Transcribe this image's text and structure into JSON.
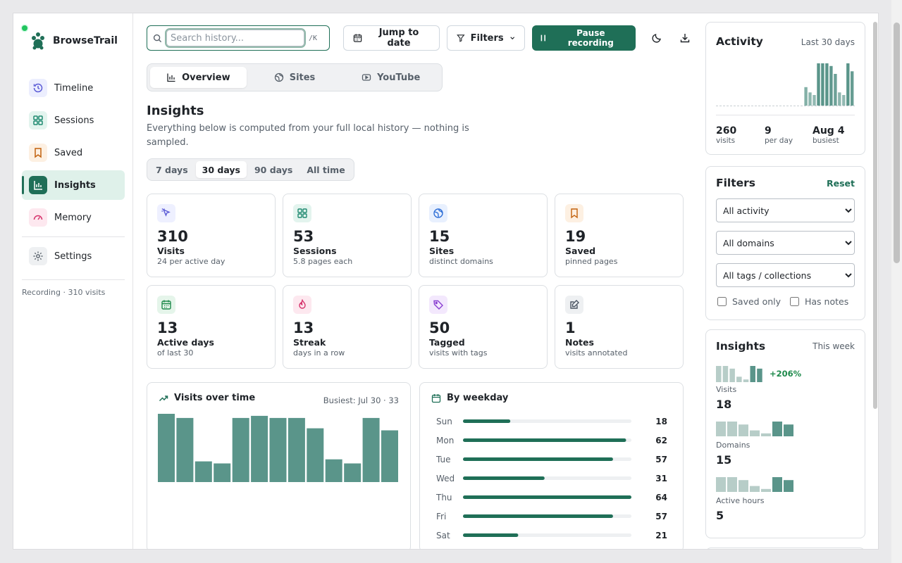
{
  "brand": {
    "name": "BrowseTrail"
  },
  "sidebar": {
    "items": [
      {
        "label": "Timeline",
        "icon": "history-icon"
      },
      {
        "label": "Sessions",
        "icon": "grid-icon"
      },
      {
        "label": "Saved",
        "icon": "bookmark-icon"
      },
      {
        "label": "Insights",
        "icon": "bar-chart-icon",
        "active": true
      },
      {
        "label": "Memory",
        "icon": "gauge-icon"
      },
      {
        "label": "Settings",
        "icon": "gear-icon"
      }
    ],
    "status": "Recording · 310 visits"
  },
  "topbar": {
    "search_placeholder": "Search history...",
    "search_shortcut": "/K",
    "jump_label": "Jump to date",
    "filters_label": "Filters",
    "pause_label": "Pause recording"
  },
  "tabs": [
    {
      "label": "Overview",
      "icon": "bar-chart-icon",
      "active": true
    },
    {
      "label": "Sites",
      "icon": "globe-icon"
    },
    {
      "label": "YouTube",
      "icon": "play-icon"
    }
  ],
  "insights": {
    "title": "Insights",
    "subtitle": "Everything below is computed from your full local history — nothing is sampled.",
    "ranges": [
      "7 days",
      "30 days",
      "90 days",
      "All time"
    ],
    "active_range": "30 days"
  },
  "stats": [
    {
      "value": "310",
      "label": "Visits",
      "sub": "24 per active day",
      "icon": "cursor-icon",
      "color": "#5b5bd6",
      "bg": "#eef0ff"
    },
    {
      "value": "53",
      "label": "Sessions",
      "sub": "5.8 pages each",
      "icon": "grid-icon",
      "color": "#1f8a70",
      "bg": "#e3f4ee"
    },
    {
      "value": "15",
      "label": "Sites",
      "sub": "distinct domains",
      "icon": "globe-icon",
      "color": "#2f6fd6",
      "bg": "#e8f0fe"
    },
    {
      "value": "19",
      "label": "Saved",
      "sub": "pinned pages",
      "icon": "bookmark-icon",
      "color": "#c2610c",
      "bg": "#fdf0e2"
    },
    {
      "value": "13",
      "label": "Active days",
      "sub": "of last 30",
      "icon": "calendar-icon",
      "color": "#1f8a4c",
      "bg": "#e5f5ea"
    },
    {
      "value": "13",
      "label": "Streak",
      "sub": "days in a row",
      "icon": "flame-icon",
      "color": "#d6336c",
      "bg": "#fde8ef"
    },
    {
      "value": "50",
      "label": "Tagged",
      "sub": "visits with tags",
      "icon": "tag-icon",
      "color": "#8a3fd1",
      "bg": "#f3e8fd"
    },
    {
      "value": "1",
      "label": "Notes",
      "sub": "visits annotated",
      "icon": "note-icon",
      "color": "#4b5563",
      "bg": "#eef0f2"
    }
  ],
  "visits_card": {
    "title": "Visits over time",
    "meta": "Busiest: Jul 30 · 33"
  },
  "weekday_card": {
    "title": "By weekday"
  },
  "activity": {
    "title": "Activity",
    "meta": "Last 30 days",
    "stats": [
      {
        "value": "260",
        "label": "visits"
      },
      {
        "value": "9",
        "label": "per day"
      },
      {
        "value": "Aug 4",
        "label": "busiest"
      }
    ]
  },
  "filters": {
    "title": "Filters",
    "reset_label": "Reset",
    "activity_select": "All activity",
    "domain_select": "All domains",
    "tag_select": "All tags / collections",
    "saved_only_label": "Saved only",
    "has_notes_label": "Has notes"
  },
  "side_insights": {
    "title": "Insights",
    "meta": "This week",
    "change": "+206%",
    "metrics": [
      {
        "label": "Visits",
        "value": "18"
      },
      {
        "label": "Domains",
        "value": "15"
      },
      {
        "label": "Active hours",
        "value": "5"
      }
    ]
  },
  "colors": {
    "accent": "#1f6f57",
    "bar": "#5a958a",
    "bar_light": "#b7cdc8",
    "active_bg": "#dff1ea"
  },
  "chart_data": [
    {
      "type": "bar",
      "title": "Visits over time",
      "values": [
        33,
        31,
        10,
        9,
        31,
        32,
        31,
        31,
        26,
        11,
        9,
        31,
        25
      ],
      "ylim": [
        0,
        33
      ]
    },
    {
      "type": "bar",
      "title": "By weekday",
      "categories": [
        "Sun",
        "Mon",
        "Tue",
        "Wed",
        "Thu",
        "Fri",
        "Sat"
      ],
      "values": [
        18,
        62,
        57,
        31,
        64,
        57,
        21
      ],
      "xlim": [
        0,
        64
      ]
    },
    {
      "type": "bar",
      "title": "Activity",
      "values": [
        0,
        0,
        0,
        0,
        0,
        0,
        0,
        0,
        0,
        0,
        0,
        0,
        0,
        0,
        0,
        0,
        0,
        0,
        0,
        0,
        0,
        7,
        5,
        4,
        16,
        16,
        16,
        15,
        12,
        5,
        4,
        16,
        13
      ],
      "ylim": [
        0,
        16
      ]
    },
    {
      "type": "bar",
      "title": "Insights",
      "series": [
        {
          "values": [
            6,
            6,
            5,
            2,
            1,
            6,
            5
          ]
        },
        {
          "values": [
            5,
            5,
            4,
            2,
            1,
            5,
            4
          ]
        },
        {
          "values": [
            5,
            5,
            4,
            2,
            1,
            5,
            4
          ]
        }
      ]
    }
  ]
}
